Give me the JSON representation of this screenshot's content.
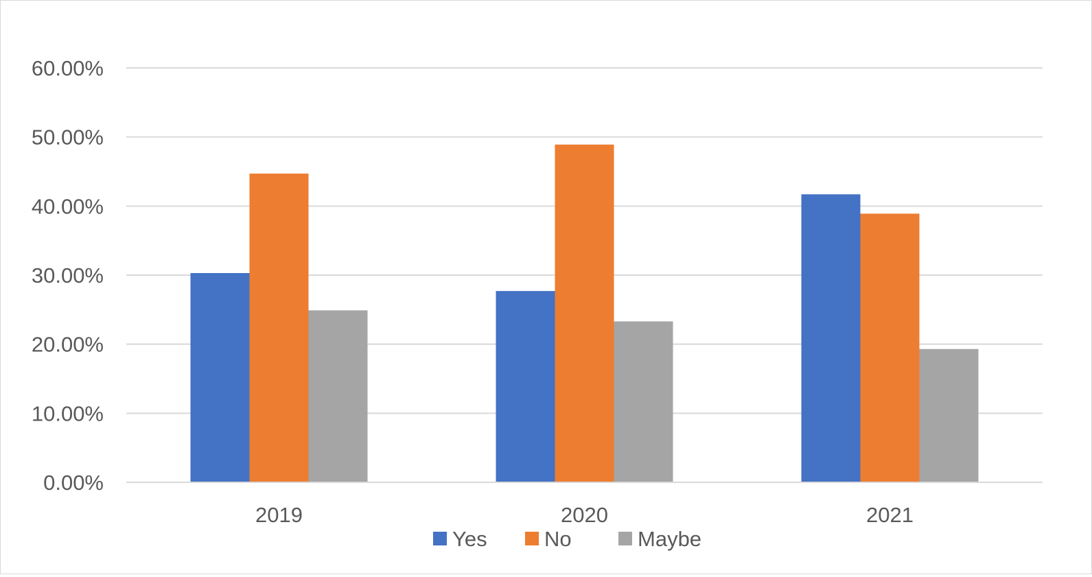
{
  "chart_data": {
    "type": "bar",
    "title": "",
    "xlabel": "",
    "ylabel": "",
    "categories": [
      "2019",
      "2020",
      "2021"
    ],
    "series": [
      {
        "name": "Yes",
        "color": "#4472C4",
        "values": [
          0.303,
          0.277,
          0.417
        ]
      },
      {
        "name": "No",
        "color": "#ED7D31",
        "values": [
          0.447,
          0.489,
          0.389
        ]
      },
      {
        "name": "Maybe",
        "color": "#A5A5A5",
        "values": [
          0.249,
          0.233,
          0.193
        ]
      }
    ],
    "ylim": [
      0,
      0.6
    ],
    "y_ticks": [
      0,
      0.1,
      0.2,
      0.3,
      0.4,
      0.5,
      0.6
    ],
    "y_tick_labels": [
      "0.00%",
      "10.00%",
      "20.00%",
      "30.00%",
      "40.00%",
      "50.00%",
      "60.00%"
    ],
    "grid": true,
    "gridline_color": "#D9D9D9",
    "legend_position": "bottom"
  }
}
